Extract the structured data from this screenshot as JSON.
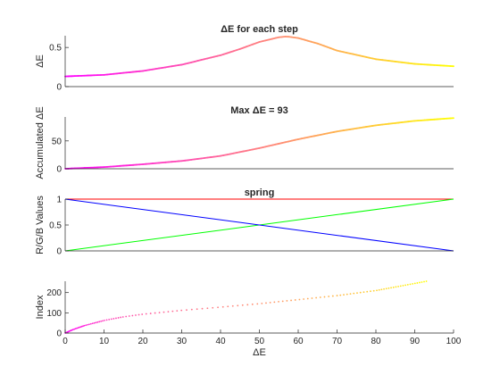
{
  "chart_data": [
    {
      "id": "delta-e-step",
      "type": "line",
      "title": "ΔE for each step",
      "xlabel": "",
      "ylabel": "ΔE",
      "xlim": [
        0,
        100
      ],
      "ylim": [
        0,
        0.65
      ],
      "yticks": [
        0,
        0.5
      ],
      "ytick_labels": [
        "0",
        "0.5"
      ],
      "x": [
        0,
        10,
        20,
        30,
        40,
        45,
        50,
        55,
        57,
        60,
        65,
        70,
        80,
        90,
        100
      ],
      "series": [
        {
          "values": [
            0.13,
            0.15,
            0.2,
            0.28,
            0.4,
            0.48,
            0.57,
            0.63,
            0.64,
            0.62,
            0.55,
            0.46,
            0.35,
            0.29,
            0.26
          ],
          "gradient": [
            "#ff00ff",
            "#ffff00"
          ]
        }
      ]
    },
    {
      "id": "accumulated",
      "type": "line",
      "title": "Max  ΔE = 93",
      "xlabel": "",
      "ylabel": "Accumulated ΔE",
      "xlim": [
        0,
        100
      ],
      "ylim": [
        0,
        93
      ],
      "yticks": [
        0,
        50
      ],
      "ytick_labels": [
        "0",
        "50"
      ],
      "x": [
        0,
        10,
        20,
        30,
        40,
        50,
        60,
        70,
        80,
        90,
        100
      ],
      "series": [
        {
          "values": [
            0,
            3,
            8,
            14,
            23,
            37,
            53,
            67,
            78,
            86,
            91
          ],
          "gradient": [
            "#ff00ff",
            "#ffff00"
          ]
        }
      ]
    },
    {
      "id": "spring-rgb",
      "type": "line",
      "title": "spring",
      "xlabel": "",
      "ylabel": "R/G/B Values",
      "xlim": [
        0,
        100
      ],
      "ylim": [
        0,
        1
      ],
      "yticks": [
        0,
        0.5,
        1
      ],
      "ytick_labels": [
        "0",
        "0.5",
        "1"
      ],
      "x": [
        0,
        100
      ],
      "series": [
        {
          "values": [
            1,
            1
          ],
          "color": "#ff0000"
        },
        {
          "values": [
            0,
            1
          ],
          "color": "#00ff00"
        },
        {
          "values": [
            1,
            0
          ],
          "color": "#0000ff"
        }
      ]
    },
    {
      "id": "index",
      "type": "scatter",
      "title": "",
      "xlabel": "ΔE",
      "ylabel": "Index",
      "xlim": [
        0,
        100
      ],
      "ylim": [
        0,
        256
      ],
      "yticks": [
        0,
        100,
        200
      ],
      "ytick_labels": [
        "0",
        "100",
        "200"
      ],
      "xticks": [
        0,
        10,
        20,
        30,
        40,
        50,
        60,
        70,
        80,
        90,
        100
      ],
      "xtick_labels": [
        "0",
        "10",
        "20",
        "30",
        "40",
        "50",
        "60",
        "70",
        "80",
        "90",
        "100"
      ],
      "curve_x": [
        0,
        2,
        5,
        10,
        15,
        20,
        30,
        40,
        50,
        60,
        70,
        80,
        90,
        93
      ],
      "curve_y": [
        0,
        17,
        37,
        62,
        80,
        93,
        112,
        128,
        145,
        165,
        185,
        210,
        245,
        256
      ],
      "gradient": [
        "#ff00ff",
        "#ffff00"
      ]
    }
  ]
}
